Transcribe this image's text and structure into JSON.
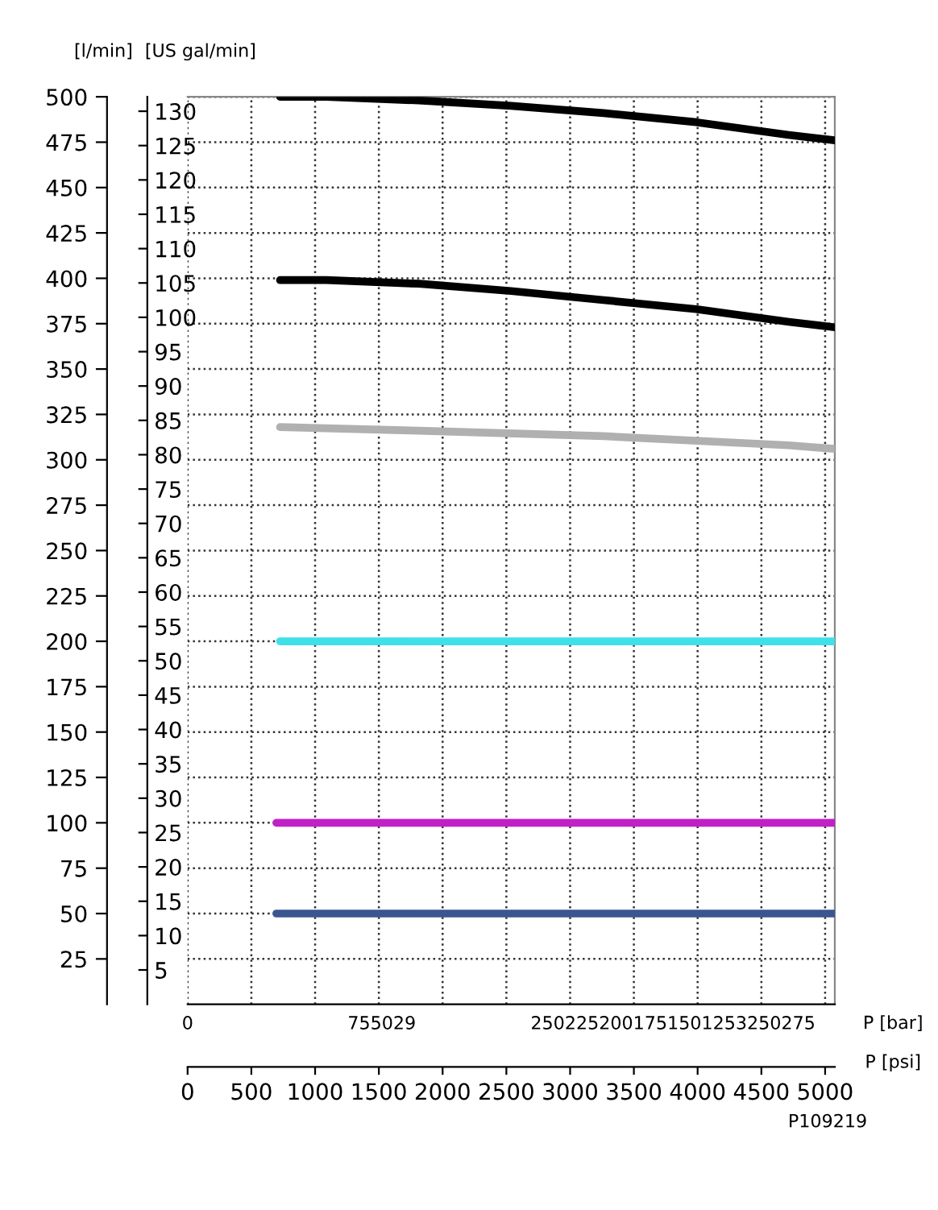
{
  "chart_data": {
    "type": "line",
    "xlabel": "P [psi]",
    "x2label": "P [bar]",
    "ylabel": "[l/min]",
    "y2label": "[US gal/min]",
    "xlim": [
      0,
      5076
    ],
    "xticks": [
      0,
      500,
      1000,
      1500,
      2000,
      2500,
      3000,
      3500,
      4000,
      4500,
      5000
    ],
    "ylim": [
      0,
      500
    ],
    "yticks": [
      25,
      50,
      75,
      100,
      125,
      150,
      175,
      200,
      225,
      250,
      275,
      300,
      325,
      350,
      375,
      400,
      425,
      450,
      475,
      500
    ],
    "y2lim": [
      0,
      132.1
    ],
    "y2ticks": [
      5,
      10,
      15,
      20,
      25,
      30,
      35,
      40,
      45,
      50,
      55,
      60,
      65,
      70,
      75,
      80,
      85,
      90,
      95,
      100,
      105,
      110,
      115,
      120,
      125,
      130
    ],
    "grid": true,
    "line_style": "solid",
    "marker": "none",
    "annotations": [
      "0",
      "755029",
      "2502252001751501253250275",
      "P109219"
    ],
    "series": [
      {
        "color": "#000000",
        "x": [
          725,
          1088,
          1813,
          2538,
          3263,
          3989,
          4714,
          5076
        ],
        "values": [
          500,
          500,
          498,
          495,
          491,
          486,
          479,
          476
        ]
      },
      {
        "color": "#000000",
        "x": [
          725,
          1088,
          1813,
          2538,
          3263,
          3989,
          4714,
          5076
        ],
        "values": [
          399,
          399,
          397,
          393,
          388,
          383,
          376,
          373
        ]
      },
      {
        "color": "#b0b0b0",
        "x": [
          725,
          1813,
          3263,
          4714,
          5076
        ],
        "values": [
          318,
          316,
          313,
          308,
          306
        ]
      },
      {
        "color": "#40e0e8",
        "x": [
          725,
          5076
        ],
        "values": [
          200,
          200
        ]
      },
      {
        "color": "#c020c8",
        "x": [
          696,
          5076
        ],
        "values": [
          100,
          100
        ]
      },
      {
        "color": "#3a5590",
        "x": [
          696,
          5076
        ],
        "values": [
          50,
          50
        ]
      }
    ]
  }
}
